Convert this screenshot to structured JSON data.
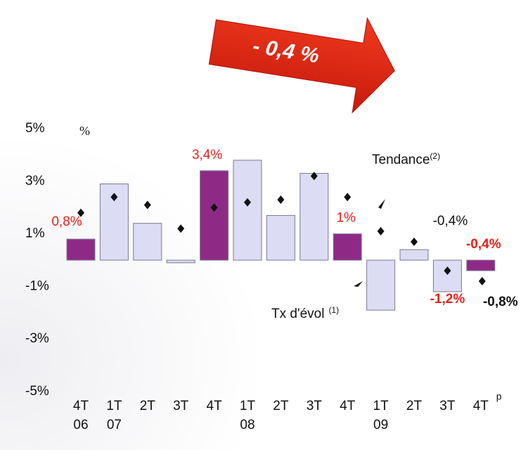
{
  "chart_data": {
    "type": "bar",
    "title": "- 0,4 %",
    "y_unit_label": "%",
    "categories": [
      "4T",
      "1T",
      "2T",
      "3T",
      "4T",
      "1T",
      "2T",
      "3T",
      "4T",
      "1T",
      "2T",
      "3T",
      "4T"
    ],
    "category_years": [
      "06",
      "07",
      null,
      null,
      null,
      "08",
      null,
      null,
      null,
      "09",
      null,
      null,
      null
    ],
    "last_category_note": "p",
    "series": [
      {
        "name": "Tx d'évol",
        "name_note": "(1)",
        "values": [
          0.8,
          2.9,
          1.4,
          -0.1,
          3.4,
          3.8,
          1.7,
          3.3,
          1,
          -1.9,
          0.4,
          -1.2,
          -0.4
        ],
        "value_labels": [
          "0,8%",
          null,
          null,
          null,
          "3,4%",
          null,
          null,
          null,
          "1%",
          null,
          null,
          "-1,2%",
          "-0,4%"
        ],
        "colors": [
          "#8e2a86",
          "#dcdcf4",
          "#dcdcf4",
          "#dcdcf4",
          "#8e2a86",
          "#dcdcf4",
          "#dcdcf4",
          "#dcdcf4",
          "#8e2a86",
          "#dcdcf4",
          "#dcdcf4",
          "#dcdcf4",
          "#8e2a86"
        ]
      },
      {
        "name": "Tendance",
        "name_note": "(2)",
        "color": "#111111",
        "values": [
          1.8,
          2.4,
          2.1,
          1.2,
          2.0,
          2.2,
          2.3,
          3.2,
          2.4,
          1.1,
          0.7,
          -0.4,
          -0.8
        ],
        "value_labels": [
          null,
          null,
          null,
          null,
          null,
          null,
          null,
          null,
          null,
          null,
          null,
          "-0,4%",
          "-0,8%"
        ]
      }
    ],
    "ylim": [
      -5,
      5
    ],
    "yticks": [
      {
        "value": 5,
        "label": "5%"
      },
      {
        "value": 3,
        "label": "3%"
      },
      {
        "value": 1,
        "label": "1%"
      },
      {
        "value": -1,
        "label": "-1%"
      },
      {
        "value": -3,
        "label": "-3%"
      },
      {
        "value": -5,
        "label": "-5%"
      }
    ]
  }
}
